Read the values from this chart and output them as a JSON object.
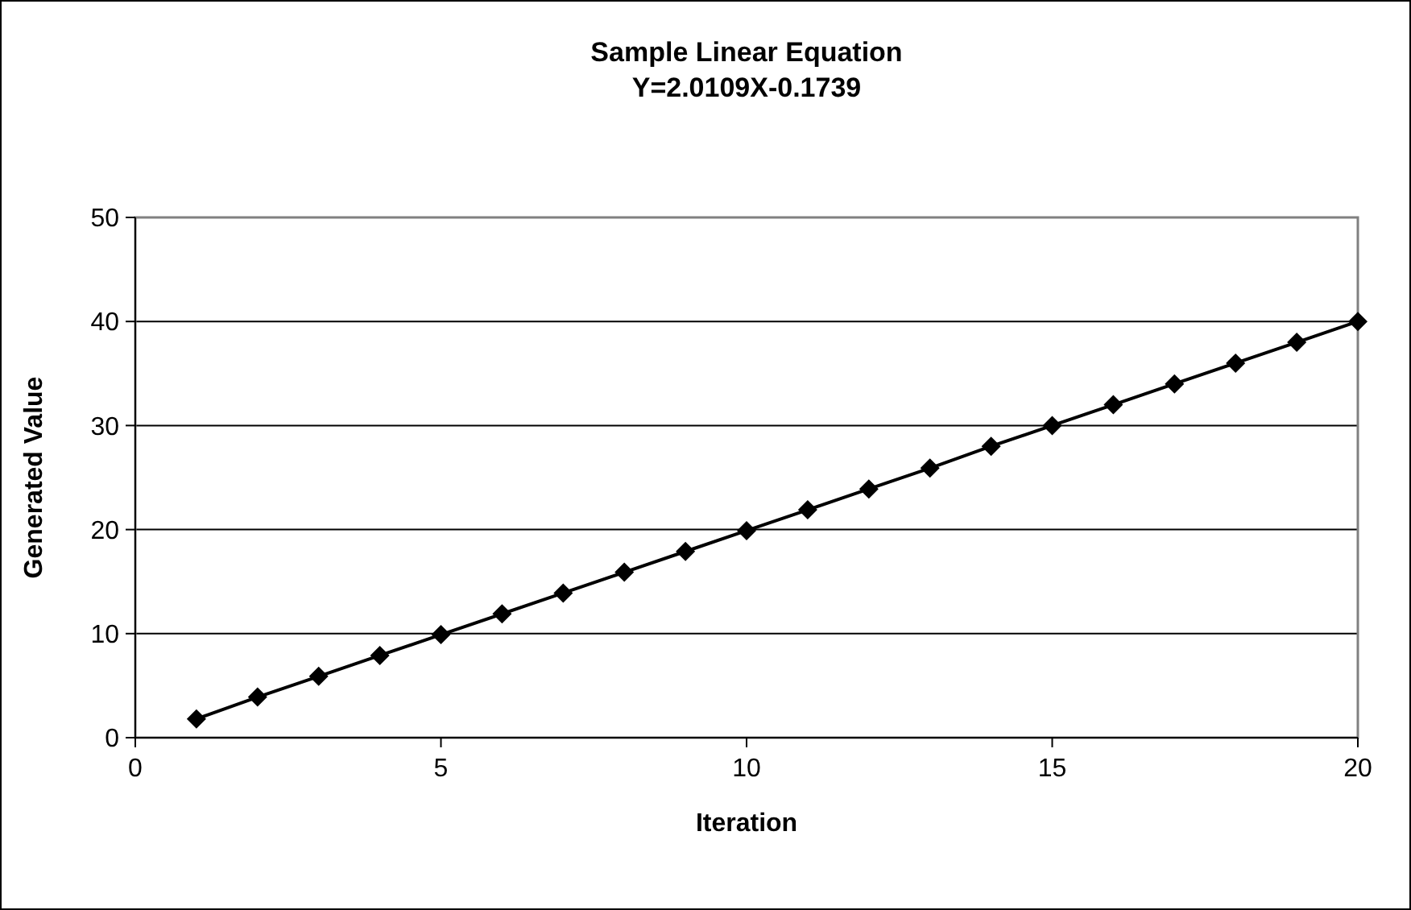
{
  "chart_data": {
    "type": "line",
    "title": "Sample Linear Equation",
    "subtitle": "Y=2.0109X-0.1739",
    "xlabel": "Iteration",
    "ylabel": "Generated Value",
    "x": [
      1,
      2,
      3,
      4,
      5,
      6,
      7,
      8,
      9,
      10,
      11,
      12,
      13,
      14,
      15,
      16,
      17,
      18,
      19,
      20
    ],
    "series": [
      {
        "color": "#000000",
        "values": [
          1.8,
          3.9,
          5.9,
          7.9,
          9.9,
          11.9,
          13.9,
          15.9,
          17.9,
          19.9,
          21.9,
          23.9,
          25.9,
          28,
          30,
          32,
          34,
          36,
          38,
          40
        ]
      }
    ],
    "xlim": [
      0,
      20
    ],
    "xticks": [
      0,
      5,
      10,
      15,
      20
    ],
    "ylim": [
      0,
      50
    ],
    "yticks": [
      0,
      10,
      20,
      30,
      40,
      50
    ],
    "grid": "y",
    "marker": "diamond",
    "line_style": "solid"
  }
}
